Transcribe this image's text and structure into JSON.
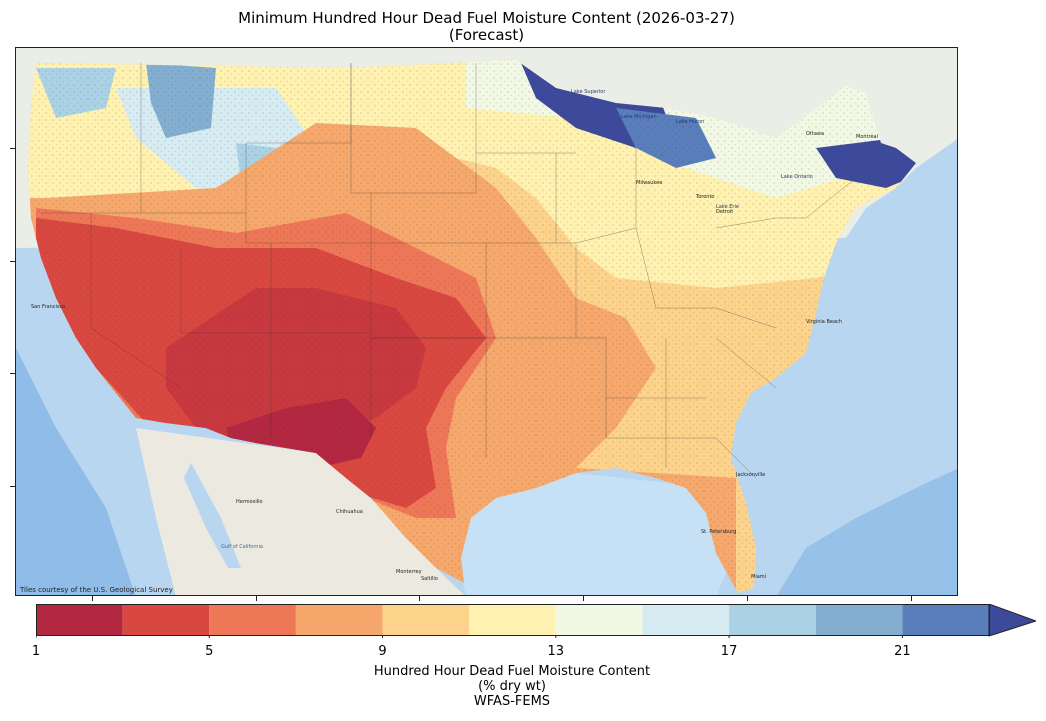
{
  "title": {
    "line1": "Minimum Hundred Hour Dead Fuel Moisture Content (2026-03-27)",
    "line2": "(Forecast)"
  },
  "map": {
    "attribution": "Tiles courtesy of the U.S. Geological Survey",
    "places": [
      {
        "name": "Lake Superior",
        "color": "#2a3a6a"
      },
      {
        "name": "Lake Michigan",
        "color": "#2a3a6a"
      },
      {
        "name": "Lake Huron",
        "color": "#2a3a6a"
      },
      {
        "name": "Lake Erie",
        "color": "#2a3a6a"
      },
      {
        "name": "Lake Ontario",
        "color": "#2a3a6a"
      },
      {
        "name": "Ottawa",
        "color": "#222222"
      },
      {
        "name": "Montreal",
        "color": "#222222"
      },
      {
        "name": "Milwaukee",
        "color": "#222222"
      },
      {
        "name": "Toronto",
        "color": "#222222"
      },
      {
        "name": "Detroit",
        "color": "#222222"
      },
      {
        "name": "San Francisco",
        "color": "#222222"
      },
      {
        "name": "Hermosillo",
        "color": "#222222"
      },
      {
        "name": "Chihuahua",
        "color": "#222222"
      },
      {
        "name": "Monterrey",
        "color": "#222222"
      },
      {
        "name": "Saltillo",
        "color": "#222222"
      },
      {
        "name": "Gulf of California",
        "color": "#4a6a8a"
      },
      {
        "name": "Jacksonville",
        "color": "#222222"
      },
      {
        "name": "St. Petersburg",
        "color": "#222222"
      },
      {
        "name": "Miami",
        "color": "#222222"
      },
      {
        "name": "Virginia Beach",
        "color": "#222222"
      }
    ],
    "colors": {
      "ocean": "#b8d6f0",
      "land": "#ebeee6"
    }
  },
  "colorbar": {
    "ticks": [
      "1",
      "5",
      "9",
      "13",
      "17",
      "21"
    ],
    "bins": [
      {
        "from": 1,
        "to": 3,
        "color": "#b32840"
      },
      {
        "from": 3,
        "to": 5,
        "color": "#d94840"
      },
      {
        "from": 5,
        "to": 7,
        "color": "#ee7758"
      },
      {
        "from": 7,
        "to": 9,
        "color": "#f6a86c"
      },
      {
        "from": 9,
        "to": 11,
        "color": "#fdd38c"
      },
      {
        "from": 11,
        "to": 13,
        "color": "#fff1b0"
      },
      {
        "from": 13,
        "to": 15,
        "color": "#f1f8e4"
      },
      {
        "from": 15,
        "to": 17,
        "color": "#d6ebf2"
      },
      {
        "from": 17,
        "to": 19,
        "color": "#abd2e4"
      },
      {
        "from": 19,
        "to": 21,
        "color": "#84aed0"
      },
      {
        "from": 21,
        "to": 23,
        "color": "#5a7dbb"
      }
    ],
    "extend_color": "#3d4a9c",
    "label_line1": "Hundred Hour Dead Fuel Moisture Content",
    "label_line2": "(% dry wt)",
    "label_line3": "WFAS-FEMS"
  }
}
